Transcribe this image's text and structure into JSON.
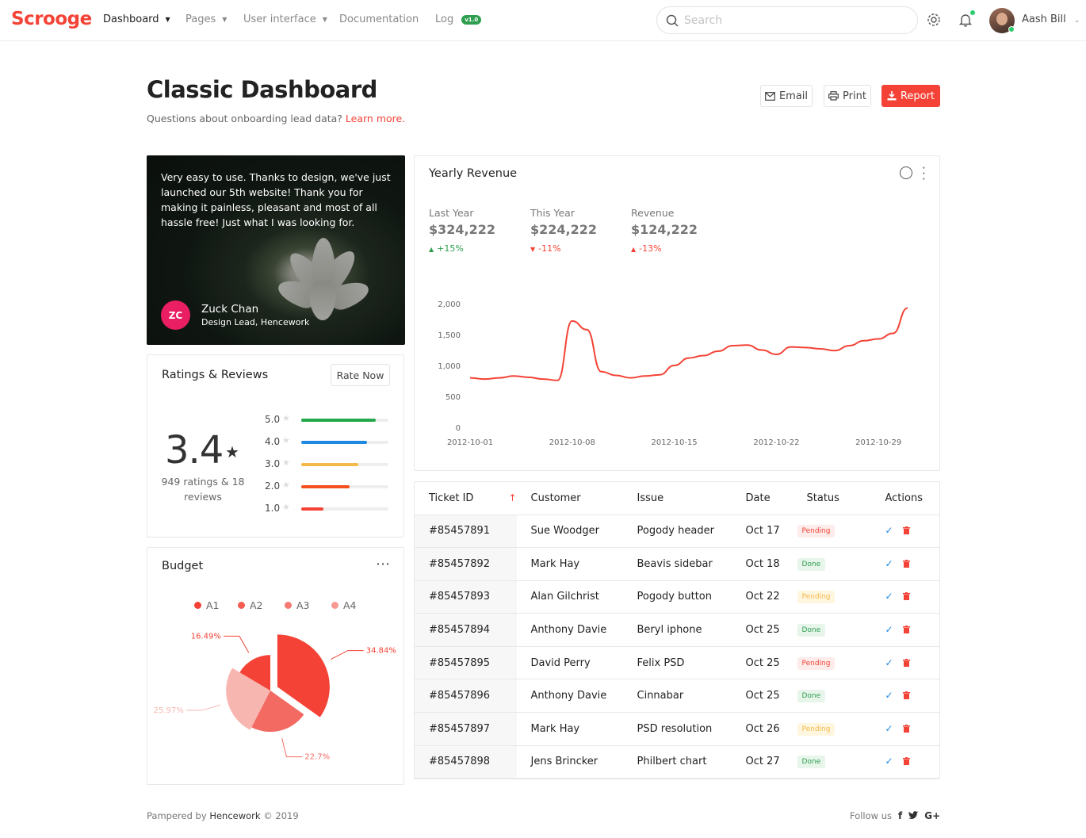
{
  "brand": {
    "name": "Scrooge",
    "color": "#f44336"
  },
  "nav": {
    "items": [
      {
        "label": "Dashboard",
        "caret": true,
        "active": true
      },
      {
        "label": "Pages",
        "caret": true
      },
      {
        "label": "User interface",
        "caret": true
      },
      {
        "label": "Documentation",
        "caret": false
      },
      {
        "label": "Log",
        "caret": false,
        "badge": "v1.0"
      }
    ],
    "search_placeholder": "Search",
    "icons": [
      "search-icon",
      "gear-icon",
      "bell-icon",
      "chevron-down-icon"
    ],
    "user": {
      "name": "Aash Bill"
    }
  },
  "header": {
    "title": "Classic Dashboard",
    "subtitle": "Questions about onboarding lead data?",
    "link": "Learn more.",
    "buttons": {
      "email": "Email",
      "print": "Print",
      "report": "Report"
    }
  },
  "testimonial": {
    "quote": "Very easy to use. Thanks to design, we've just launched our 5th website! Thank you for making it painless, pleasant and most of all hassle free! Just what I was looking for.",
    "initials": "ZC",
    "author": "Zuck Chan",
    "role": "Design Lead, Hencework"
  },
  "ratings": {
    "title": "Ratings & Reviews",
    "button": "Rate Now",
    "score": "3.4",
    "note": "949 ratings & 18 reviews",
    "rows": [
      {
        "label": "5.0",
        "fraction": 0.85,
        "color": "#22a84a"
      },
      {
        "label": "4.0",
        "fraction": 0.75,
        "color": "#1e88e5"
      },
      {
        "label": "3.0",
        "fraction": 0.65,
        "color": "#f5b94a"
      },
      {
        "label": "2.0",
        "fraction": 0.55,
        "color": "#f4511e"
      },
      {
        "label": "1.0",
        "fraction": 0.25,
        "color": "#f44336"
      }
    ]
  },
  "budget": {
    "title": "Budget",
    "legend": [
      {
        "label": "A1",
        "color": "#f44336"
      },
      {
        "label": "A2",
        "color": "#f45c52"
      },
      {
        "label": "A3",
        "color": "#f47a72"
      },
      {
        "label": "A4",
        "color": "#f79a94"
      }
    ],
    "slices": [
      {
        "label": "34.84%",
        "value": 34.84,
        "color": "#f44336"
      },
      {
        "label": "22.7%",
        "value": 22.7,
        "color": "#f36a62"
      },
      {
        "label": "25.97%",
        "value": 25.97,
        "color": "#f8b6b1"
      },
      {
        "label": "16.49%",
        "value": 16.49,
        "color": "#f44336"
      }
    ]
  },
  "revenue": {
    "title": "Yearly Revenue",
    "stats": [
      {
        "label": "Last Year",
        "value": "$324,222",
        "delta": "+15%",
        "dir": "up"
      },
      {
        "label": "This Year",
        "value": "$224,222",
        "delta": "-11%",
        "dir": "down"
      },
      {
        "label": "Revenue",
        "value": "$124,222",
        "delta": "-13%",
        "dir": "down-up"
      }
    ]
  },
  "chart_data": {
    "type": "line",
    "title": "Yearly Revenue",
    "xlabel": "",
    "ylabel": "",
    "x_ticks": [
      "2012-10-01",
      "2012-10-08",
      "2012-10-15",
      "2012-10-22",
      "2012-10-29"
    ],
    "y_ticks": [
      "0",
      "500",
      "1,000",
      "1,500",
      "2,000"
    ],
    "ylim": [
      0,
      2000
    ],
    "grid": false,
    "line_color": "#f44336",
    "series": [
      {
        "name": "",
        "x": [
          "2012-10-01",
          "2012-10-02",
          "2012-10-03",
          "2012-10-04",
          "2012-10-05",
          "2012-10-06",
          "2012-10-07",
          "2012-10-08",
          "2012-10-09",
          "2012-10-10",
          "2012-10-11",
          "2012-10-12",
          "2012-10-13",
          "2012-10-14",
          "2012-10-15",
          "2012-10-16",
          "2012-10-17",
          "2012-10-18",
          "2012-10-19",
          "2012-10-20",
          "2012-10-21",
          "2012-10-22",
          "2012-10-23",
          "2012-10-24",
          "2012-10-25",
          "2012-10-26",
          "2012-10-27",
          "2012-10-28",
          "2012-10-29",
          "2012-10-30",
          "2012-10-31"
        ],
        "y": [
          800,
          780,
          800,
          830,
          810,
          780,
          760,
          1720,
          1580,
          900,
          840,
          800,
          830,
          850,
          1000,
          1120,
          1160,
          1230,
          1320,
          1330,
          1250,
          1180,
          1300,
          1290,
          1270,
          1240,
          1320,
          1400,
          1430,
          1520,
          1930
        ]
      }
    ]
  },
  "tickets": {
    "columns": [
      "Ticket ID",
      "Customer",
      "Issue",
      "Date",
      "Status",
      "Actions"
    ],
    "rows": [
      {
        "id": "#85457891",
        "customer": "Sue Woodger",
        "issue": "Pogody header",
        "date": "Oct 17",
        "status": "Pending",
        "tone": "pending"
      },
      {
        "id": "#85457892",
        "customer": "Mark Hay",
        "issue": "Beavis sidebar",
        "date": "Oct 18",
        "status": "Done",
        "tone": "done"
      },
      {
        "id": "#85457893",
        "customer": "Alan Gilchrist",
        "issue": "Pogody button",
        "date": "Oct 22",
        "status": "Pending",
        "tone": "pending-y"
      },
      {
        "id": "#85457894",
        "customer": "Anthony Davie",
        "issue": "Beryl iphone",
        "date": "Oct 25",
        "status": "Done",
        "tone": "done"
      },
      {
        "id": "#85457895",
        "customer": "David Perry",
        "issue": "Felix PSD",
        "date": "Oct 25",
        "status": "Pending",
        "tone": "pending"
      },
      {
        "id": "#85457896",
        "customer": "Anthony Davie",
        "issue": "Cinnabar",
        "date": "Oct 25",
        "status": "Done",
        "tone": "done"
      },
      {
        "id": "#85457897",
        "customer": "Mark Hay",
        "issue": "PSD resolution",
        "date": "Oct 26",
        "status": "Pending",
        "tone": "pending-y"
      },
      {
        "id": "#85457898",
        "customer": "Jens Brincker",
        "issue": "Philbert chart",
        "date": "Oct 27",
        "status": "Done",
        "tone": "done"
      }
    ]
  },
  "footer": {
    "left_prefix": "Pampered by",
    "left_brand": "Hencework",
    "left_suffix": "© 2019",
    "follow": "Follow us",
    "social": [
      "facebook-icon",
      "twitter-icon",
      "google-plus-icon"
    ]
  }
}
